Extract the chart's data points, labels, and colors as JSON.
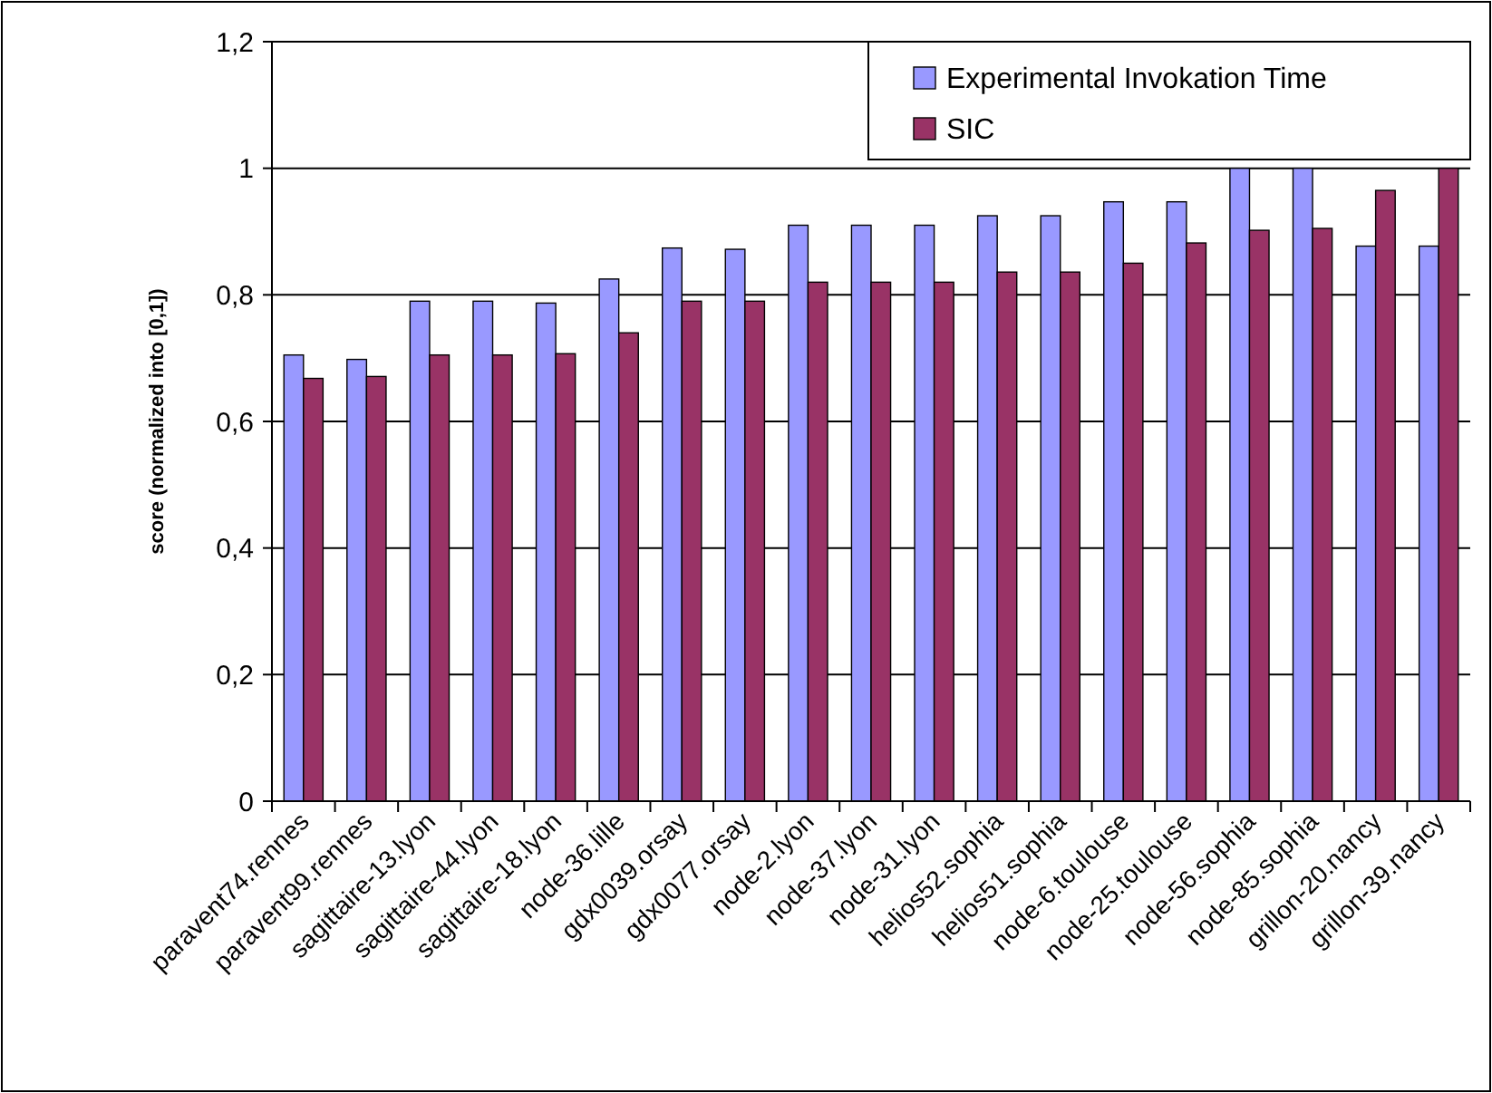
{
  "chart_data": {
    "type": "bar",
    "ylabel": "score (normalized into [0,1])",
    "categories": [
      "paravent74.rennes",
      "paravent99.rennes",
      "sagittaire-13.lyon",
      "sagittaire-44.lyon",
      "sagittaire-18.lyon",
      "node-36.lille",
      "gdx0039.orsay",
      "gdx0077.orsay",
      "node-2.lyon",
      "node-37.lyon",
      "node-31.lyon",
      "helios52.sophia",
      "helios51.sophia",
      "node-6.toulouse",
      "node-25.toulouse",
      "node-56.sophia",
      "node-85.sophia",
      "grillon-20.nancy",
      "grillon-39.nancy"
    ],
    "series": [
      {
        "name": "Experimental Invokation Time",
        "color": "#9999ff",
        "values": [
          0.705,
          0.698,
          0.79,
          0.79,
          0.787,
          0.825,
          0.874,
          0.872,
          0.91,
          0.91,
          0.91,
          0.925,
          0.925,
          0.947,
          0.947,
          1,
          1,
          0.877,
          0.877
        ]
      },
      {
        "name": "SIC",
        "color": "#993366",
        "values": [
          0.668,
          0.671,
          0.705,
          0.705,
          0.707,
          0.74,
          0.79,
          0.79,
          0.82,
          0.82,
          0.82,
          0.836,
          0.836,
          0.85,
          0.882,
          0.902,
          0.905,
          0.965,
          1
        ]
      }
    ],
    "ylim": [
      0,
      1.2
    ],
    "yticks": [
      0,
      {
        "value": 0.2,
        "label": "0,2"
      },
      {
        "value": 0.4,
        "label": "0,4"
      },
      {
        "value": 0.6,
        "label": "0,6"
      },
      {
        "value": 0.8,
        "label": "0,8"
      },
      1,
      {
        "value": 1.2,
        "label": "1,2"
      }
    ],
    "grid": "y",
    "legend": "top right"
  }
}
